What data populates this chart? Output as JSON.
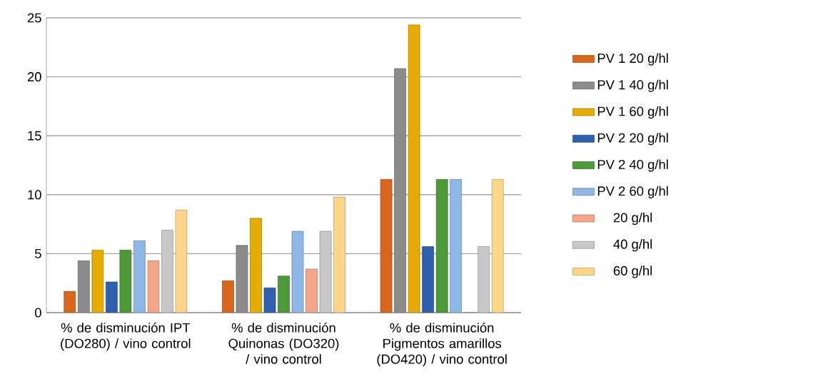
{
  "chart_data": {
    "type": "bar",
    "categories": [
      "% de disminución IPT (DO280) / vino control",
      "% de disminución Quinonas (DO320) / vino control",
      "% de disminución Pigmentos amarillos (DO420) / vino control"
    ],
    "series": [
      {
        "name": "PV 1 20 g/hl",
        "color": "#d8661c",
        "values": [
          1.8,
          2.7,
          11.3
        ]
      },
      {
        "name": "PV 1 40 g/hl",
        "color": "#8c8c8c",
        "values": [
          4.4,
          5.7,
          20.7
        ]
      },
      {
        "name": "PV 1 60 g/hl",
        "color": "#e5ab00",
        "values": [
          5.3,
          8.0,
          24.4
        ]
      },
      {
        "name": "PV  2 20 g/hl",
        "color": "#2f5fae",
        "values": [
          2.6,
          2.1,
          5.6
        ]
      },
      {
        "name": "PV  2 40 g/hl",
        "color": "#4e9a38",
        "values": [
          5.3,
          3.1,
          11.3
        ]
      },
      {
        "name": "PV 2 60 g/hl",
        "color": "#8fb7e6",
        "values": [
          6.1,
          6.9,
          11.3
        ]
      },
      {
        "name": "20 g/hl",
        "color": "#f4a58a",
        "values": [
          4.4,
          3.7,
          0
        ]
      },
      {
        "name": "40 g/hl",
        "color": "#c8c8c8",
        "values": [
          7.0,
          6.9,
          5.6
        ]
      },
      {
        "name": "60 g/hl",
        "color": "#fdd68a",
        "values": [
          8.7,
          9.8,
          11.3
        ]
      }
    ],
    "ylim": [
      0,
      25
    ],
    "yticks": [
      0,
      5,
      10,
      15,
      20,
      25
    ],
    "grid": "y",
    "legend": "right"
  }
}
